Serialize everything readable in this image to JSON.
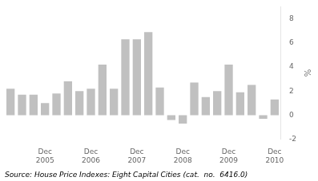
{
  "chart_data": {
    "type": "bar",
    "categories": [
      null,
      null,
      null,
      "Dec\n2005",
      null,
      null,
      null,
      "Dec\n2006",
      null,
      null,
      null,
      "Dec\n2007",
      null,
      null,
      null,
      "Dec\n2008",
      null,
      null,
      null,
      "Dec\n2009",
      null,
      null,
      null,
      "Dec\n2010"
    ],
    "values": [
      2.2,
      1.7,
      1.7,
      1.0,
      1.8,
      2.8,
      2.0,
      2.2,
      4.2,
      2.2,
      6.3,
      6.3,
      6.9,
      2.3,
      -0.4,
      -0.7,
      2.7,
      1.5,
      2.0,
      4.2,
      1.9,
      2.5,
      -0.3,
      1.3
    ],
    "color": "#c0c0c0",
    "ylabel": "%",
    "ylim": [
      -2,
      9
    ],
    "yticks": [
      -2,
      0,
      2,
      4,
      6,
      8
    ],
    "grid": false,
    "annotations": [
      "Source: House Price Indexes: Eight Capital Cities (cat.  no.  6416.0)"
    ]
  }
}
